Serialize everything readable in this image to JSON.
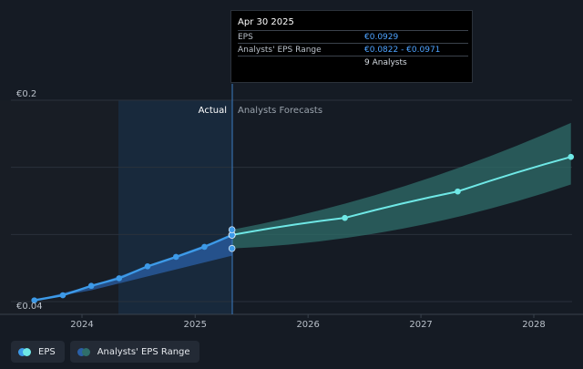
{
  "tooltip": {
    "date": "Apr 30 2025",
    "rows": [
      {
        "label": "EPS",
        "value": "€0.0929"
      },
      {
        "label": "Analysts' EPS Range",
        "value": "€0.0822 - €0.0971"
      },
      {
        "label": "",
        "value": "9 Analysts"
      }
    ]
  },
  "legend": {
    "eps_label": "EPS",
    "range_label": "Analysts' EPS Range"
  },
  "colors": {
    "background": "#151b24",
    "eps_line": "#3d9ae8",
    "forecast_line": "#6fe8e6",
    "forecast_band": "#2f6e6a",
    "past_band": "#2a5fa6",
    "highlight": "#1c3a58"
  },
  "chart_data": {
    "type": "line",
    "actual_label": "Actual",
    "forecast_label": "Analysts Forecasts",
    "y_tick_labels": [
      "€0.2",
      "€0.04"
    ],
    "ylim": [
      0.04,
      0.2
    ],
    "x_ticks": [
      "2024",
      "2025",
      "2026",
      "2027",
      "2028"
    ],
    "grid": true,
    "series": [
      {
        "name": "EPS",
        "points": [
          {
            "x": "2023-07-31",
            "y": 0.041
          },
          {
            "x": "2023-10-31",
            "y": 0.045
          },
          {
            "x": "2024-01-31",
            "y": 0.0525
          },
          {
            "x": "2024-04-30",
            "y": 0.0585
          },
          {
            "x": "2024-07-31",
            "y": 0.068
          },
          {
            "x": "2024-10-31",
            "y": 0.0755
          },
          {
            "x": "2025-01-31",
            "y": 0.0835
          },
          {
            "x": "2025-04-30",
            "y": 0.0929
          }
        ]
      },
      {
        "name": "EPS forecast",
        "points": [
          {
            "x": "2025-04-30",
            "y": 0.0929
          },
          {
            "x": "2026-04-30",
            "y": 0.1065
          },
          {
            "x": "2027-04-30",
            "y": 0.1275
          },
          {
            "x": "2028-04-30",
            "y": 0.155
          }
        ]
      },
      {
        "name": "Analysts' EPS Range",
        "range_points": [
          {
            "x": "2025-04-30",
            "low": 0.0822,
            "high": 0.0971
          },
          {
            "x": "2028-04-30",
            "low": 0.133,
            "high": 0.182
          }
        ]
      }
    ],
    "past_range": [
      {
        "x": "2023-07-31",
        "low": 0.041,
        "high": 0.041
      },
      {
        "x": "2024-01-31",
        "low": 0.049,
        "high": 0.0525
      },
      {
        "x": "2024-07-31",
        "low": 0.06,
        "high": 0.068
      },
      {
        "x": "2025-04-30",
        "low": 0.0765,
        "high": 0.0929
      }
    ],
    "tooltip_points": [
      {
        "x": "2025-04-30",
        "y": 0.0971
      },
      {
        "x": "2025-04-30",
        "y": 0.0822
      }
    ]
  }
}
